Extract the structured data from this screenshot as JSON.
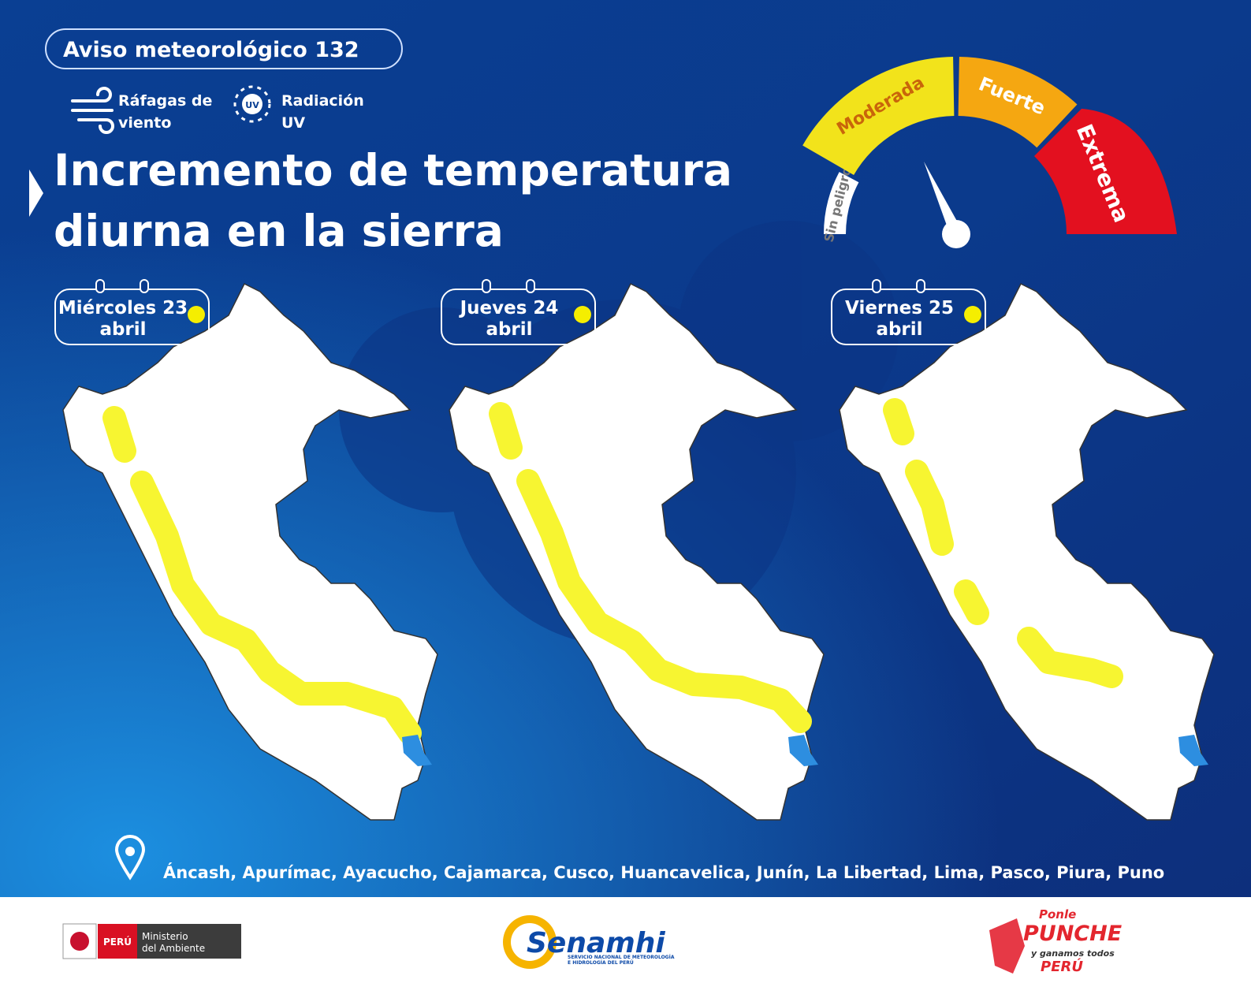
{
  "header": {
    "badge": "Aviso meteorológico 132",
    "hazards": [
      {
        "label": [
          "Ráfagas de",
          "viento"
        ]
      },
      {
        "icon_text": "UV",
        "label": [
          "Radiación",
          "UV"
        ]
      }
    ],
    "title": [
      "Incremento de temperatura",
      "diurna en la sierra"
    ]
  },
  "gauge": {
    "levels": [
      "Sin peligro",
      "Moderada",
      "Fuerte",
      "Extrema"
    ]
  },
  "days": [
    {
      "day": "Miércoles 23",
      "month": "abril"
    },
    {
      "day": "Jueves 24",
      "month": "abril"
    },
    {
      "day": "Viernes 25",
      "month": "abril"
    }
  ],
  "regions": "Áncash, Apurímac, Ayacucho, Cajamarca, Cusco, Huancavelica, Junín, La Libertad, Lima, Pasco, Piura, Puno",
  "footer": {
    "peru": "PERÚ",
    "ministry": [
      "Ministerio",
      "del Ambiente"
    ],
    "senamhi": "Senamhi",
    "senamhi_sub": [
      "SERVICIO NACIONAL DE METEOROLOGÍA",
      "E HIDROLOGÍA DEL PERÚ"
    ],
    "punche": [
      "Ponle",
      "PUNCHE",
      "y ganamos todos",
      "PERÚ"
    ]
  }
}
